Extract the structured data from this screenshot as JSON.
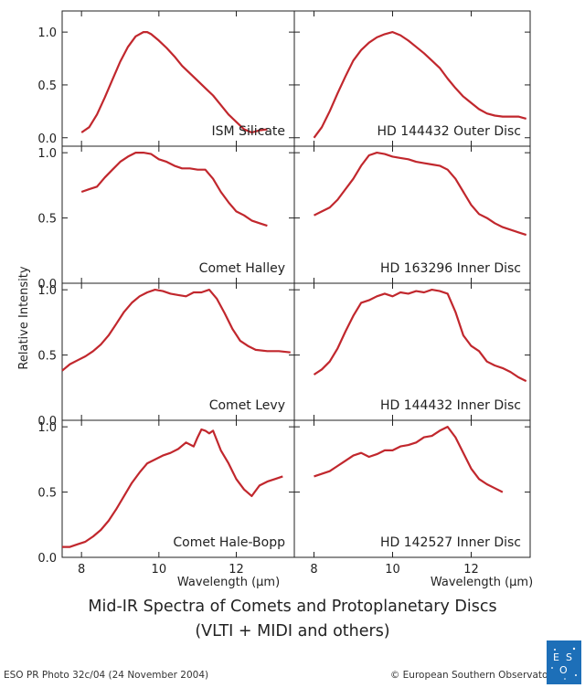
{
  "caption": {
    "line1": "Mid-IR  Spectra of Comets and Protoplanetary Discs",
    "line2": "(VLTI + MIDI and others)"
  },
  "footer": {
    "photo_id": "ESO PR Photo 32c/04 (24 November 2004)",
    "copyright": "© European Southern Observatory",
    "logo_text": "ESO"
  },
  "colors": {
    "line": "#c1272d",
    "axis": "#222222"
  },
  "chart_data": {
    "type": "line",
    "layout": "4 rows x 2 columns, shared axes",
    "ylabel": "Relative Intensity",
    "xlabel": "Wavelength (µm)",
    "xlim": [
      7.5,
      13.5
    ],
    "xticks": [
      8,
      10,
      12
    ],
    "panels": [
      {
        "label": "ISM Silicate",
        "ylim": [
          -0.08,
          1.2
        ],
        "yticks": [
          0.0,
          0.5,
          1.0
        ],
        "x": [
          8.0,
          8.2,
          8.4,
          8.6,
          8.8,
          9.0,
          9.2,
          9.4,
          9.6,
          9.7,
          9.8,
          10.0,
          10.2,
          10.4,
          10.6,
          10.8,
          11.0,
          11.2,
          11.4,
          11.6,
          11.8,
          12.0,
          12.2,
          12.4,
          12.6,
          12.8
        ],
        "y": [
          0.05,
          0.1,
          0.22,
          0.38,
          0.55,
          0.72,
          0.86,
          0.96,
          1.0,
          1.0,
          0.98,
          0.92,
          0.85,
          0.77,
          0.68,
          0.61,
          0.54,
          0.47,
          0.4,
          0.31,
          0.22,
          0.15,
          0.08,
          0.05,
          0.07,
          0.08
        ]
      },
      {
        "label": "HD 144432 Outer Disc",
        "ylim": [
          -0.08,
          1.2
        ],
        "yticks": [
          0.0,
          0.5,
          1.0
        ],
        "x": [
          8.0,
          8.2,
          8.4,
          8.6,
          8.8,
          9.0,
          9.2,
          9.4,
          9.6,
          9.8,
          10.0,
          10.2,
          10.4,
          10.6,
          10.8,
          11.0,
          11.2,
          11.4,
          11.6,
          11.8,
          12.0,
          12.2,
          12.4,
          12.6,
          12.8,
          13.0,
          13.2,
          13.4
        ],
        "y": [
          0.0,
          0.1,
          0.25,
          0.42,
          0.58,
          0.73,
          0.83,
          0.9,
          0.95,
          0.98,
          1.0,
          0.97,
          0.92,
          0.86,
          0.8,
          0.73,
          0.66,
          0.56,
          0.47,
          0.39,
          0.33,
          0.27,
          0.23,
          0.21,
          0.2,
          0.2,
          0.2,
          0.18
        ]
      },
      {
        "label": "Comet Halley",
        "ylim": [
          0.0,
          1.05
        ],
        "yticks": [
          0.0,
          0.5,
          1.0
        ],
        "x": [
          8.0,
          8.2,
          8.4,
          8.6,
          8.8,
          9.0,
          9.2,
          9.4,
          9.6,
          9.8,
          10.0,
          10.2,
          10.4,
          10.6,
          10.8,
          11.0,
          11.2,
          11.4,
          11.6,
          11.8,
          12.0,
          12.2,
          12.4,
          12.6,
          12.8
        ],
        "y": [
          0.7,
          0.72,
          0.74,
          0.81,
          0.87,
          0.93,
          0.97,
          1.0,
          1.0,
          0.99,
          0.95,
          0.93,
          0.9,
          0.88,
          0.88,
          0.87,
          0.87,
          0.8,
          0.7,
          0.62,
          0.55,
          0.52,
          0.48,
          0.46,
          0.44
        ]
      },
      {
        "label": "HD 163296 Inner Disc",
        "ylim": [
          0.0,
          1.05
        ],
        "yticks": [
          0.0,
          0.5,
          1.0
        ],
        "x": [
          8.0,
          8.2,
          8.4,
          8.6,
          8.8,
          9.0,
          9.2,
          9.4,
          9.6,
          9.8,
          10.0,
          10.2,
          10.4,
          10.6,
          10.8,
          11.0,
          11.2,
          11.4,
          11.6,
          11.8,
          12.0,
          12.2,
          12.4,
          12.6,
          12.8,
          13.0,
          13.2,
          13.4
        ],
        "y": [
          0.52,
          0.55,
          0.58,
          0.64,
          0.72,
          0.8,
          0.9,
          0.98,
          1.0,
          0.99,
          0.97,
          0.96,
          0.95,
          0.93,
          0.92,
          0.91,
          0.9,
          0.87,
          0.8,
          0.7,
          0.6,
          0.53,
          0.5,
          0.46,
          0.43,
          0.41,
          0.39,
          0.37
        ]
      },
      {
        "label": "Comet Levy",
        "ylim": [
          0.0,
          1.05
        ],
        "yticks": [
          0.0,
          0.5,
          1.0
        ],
        "x": [
          7.5,
          7.7,
          7.9,
          8.1,
          8.3,
          8.5,
          8.7,
          8.9,
          9.1,
          9.3,
          9.5,
          9.7,
          9.9,
          10.1,
          10.3,
          10.5,
          10.7,
          10.9,
          11.1,
          11.3,
          11.5,
          11.7,
          11.9,
          12.1,
          12.3,
          12.5,
          12.8,
          13.1,
          13.4
        ],
        "y": [
          0.38,
          0.43,
          0.46,
          0.49,
          0.53,
          0.58,
          0.65,
          0.74,
          0.83,
          0.9,
          0.95,
          0.98,
          1.0,
          0.99,
          0.97,
          0.96,
          0.95,
          0.98,
          0.98,
          1.0,
          0.93,
          0.82,
          0.7,
          0.61,
          0.57,
          0.54,
          0.53,
          0.53,
          0.52
        ]
      },
      {
        "label": "HD 144432 Inner Disc",
        "ylim": [
          0.0,
          1.05
        ],
        "yticks": [
          0.0,
          0.5,
          1.0
        ],
        "x": [
          8.0,
          8.2,
          8.4,
          8.6,
          8.8,
          9.0,
          9.2,
          9.4,
          9.6,
          9.8,
          10.0,
          10.2,
          10.4,
          10.6,
          10.8,
          11.0,
          11.2,
          11.4,
          11.6,
          11.8,
          12.0,
          12.2,
          12.4,
          12.6,
          12.8,
          13.0,
          13.2,
          13.4
        ],
        "y": [
          0.35,
          0.39,
          0.45,
          0.55,
          0.68,
          0.8,
          0.9,
          0.92,
          0.95,
          0.97,
          0.95,
          0.98,
          0.97,
          0.99,
          0.98,
          1.0,
          0.99,
          0.97,
          0.83,
          0.65,
          0.57,
          0.53,
          0.45,
          0.42,
          0.4,
          0.37,
          0.33,
          0.3
        ]
      },
      {
        "label": "Comet Hale-Bopp",
        "ylim": [
          0.0,
          1.05
        ],
        "yticks": [
          0.0,
          0.5,
          1.0
        ],
        "x": [
          7.5,
          7.7,
          7.9,
          8.1,
          8.3,
          8.5,
          8.7,
          8.9,
          9.1,
          9.3,
          9.5,
          9.7,
          9.9,
          10.1,
          10.3,
          10.5,
          10.7,
          10.9,
          11.0,
          11.1,
          11.2,
          11.3,
          11.4,
          11.6,
          11.8,
          12.0,
          12.2,
          12.4,
          12.6,
          12.8,
          13.0,
          13.2
        ],
        "y": [
          0.08,
          0.08,
          0.1,
          0.12,
          0.16,
          0.21,
          0.28,
          0.37,
          0.47,
          0.57,
          0.65,
          0.72,
          0.75,
          0.78,
          0.8,
          0.83,
          0.88,
          0.85,
          0.92,
          0.98,
          0.97,
          0.95,
          0.97,
          0.82,
          0.72,
          0.6,
          0.52,
          0.47,
          0.55,
          0.58,
          0.6,
          0.62
        ]
      },
      {
        "label": "HD 142527 Inner Disc",
        "ylim": [
          0.0,
          1.05
        ],
        "yticks": [
          0.0,
          0.5,
          1.0
        ],
        "x": [
          8.0,
          8.2,
          8.4,
          8.6,
          8.8,
          9.0,
          9.2,
          9.4,
          9.6,
          9.8,
          10.0,
          10.2,
          10.4,
          10.6,
          10.8,
          11.0,
          11.2,
          11.4,
          11.6,
          11.8,
          12.0,
          12.2,
          12.4,
          12.6,
          12.8
        ],
        "y": [
          0.62,
          0.64,
          0.66,
          0.7,
          0.74,
          0.78,
          0.8,
          0.77,
          0.79,
          0.82,
          0.82,
          0.85,
          0.86,
          0.88,
          0.92,
          0.93,
          0.97,
          1.0,
          0.92,
          0.8,
          0.68,
          0.6,
          0.56,
          0.53,
          0.5
        ]
      }
    ]
  }
}
